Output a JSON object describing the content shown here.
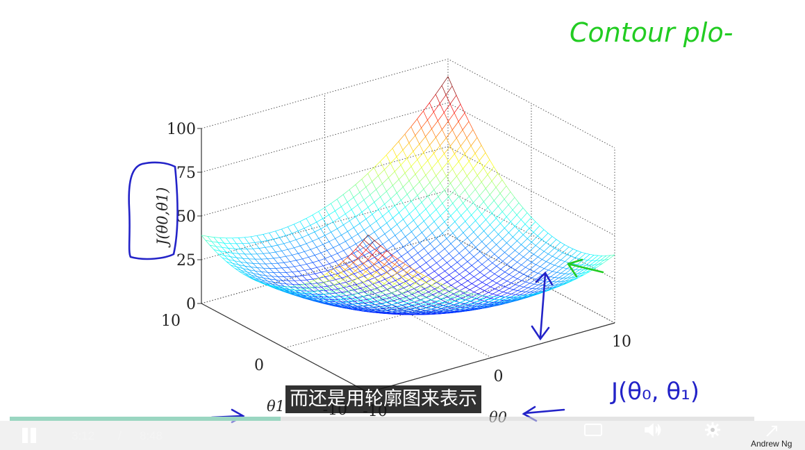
{
  "slide": {
    "handwritten_title": "Contour plo-",
    "handwritten_label": "J(θ₀, θ₁)",
    "credit": "Andrew Ng"
  },
  "chart_data": {
    "type": "surface",
    "title": "",
    "zlabel": "J(θ0,θ1)",
    "xlabel": "θ0",
    "ylabel": "θ1",
    "z_ticks": [
      "0",
      "25",
      "50",
      "75",
      "100"
    ],
    "x_ticks": [
      "-10",
      "0",
      "10"
    ],
    "y_ticks": [
      "-10",
      "0",
      "10"
    ],
    "x_range": [
      -10,
      10
    ],
    "y_range": [
      -10,
      10
    ],
    "z_range": [
      0,
      100
    ],
    "grid": true,
    "colormap": "jet"
  },
  "player": {
    "subtitle": "而还是用轮廓图来表示",
    "current_time": "3:12",
    "separator": "/",
    "duration": "8:48",
    "progress": 0.3636,
    "buttons": {
      "play_pause": "pause-icon",
      "captions": "captions-icon",
      "volume": "volume-icon",
      "settings": "gear-icon",
      "fullscreen": "fullscreen-icon"
    }
  },
  "colors": {
    "ink_green": "#22cc22",
    "ink_blue": "#2323c8",
    "progress": "#9ad6c1"
  }
}
